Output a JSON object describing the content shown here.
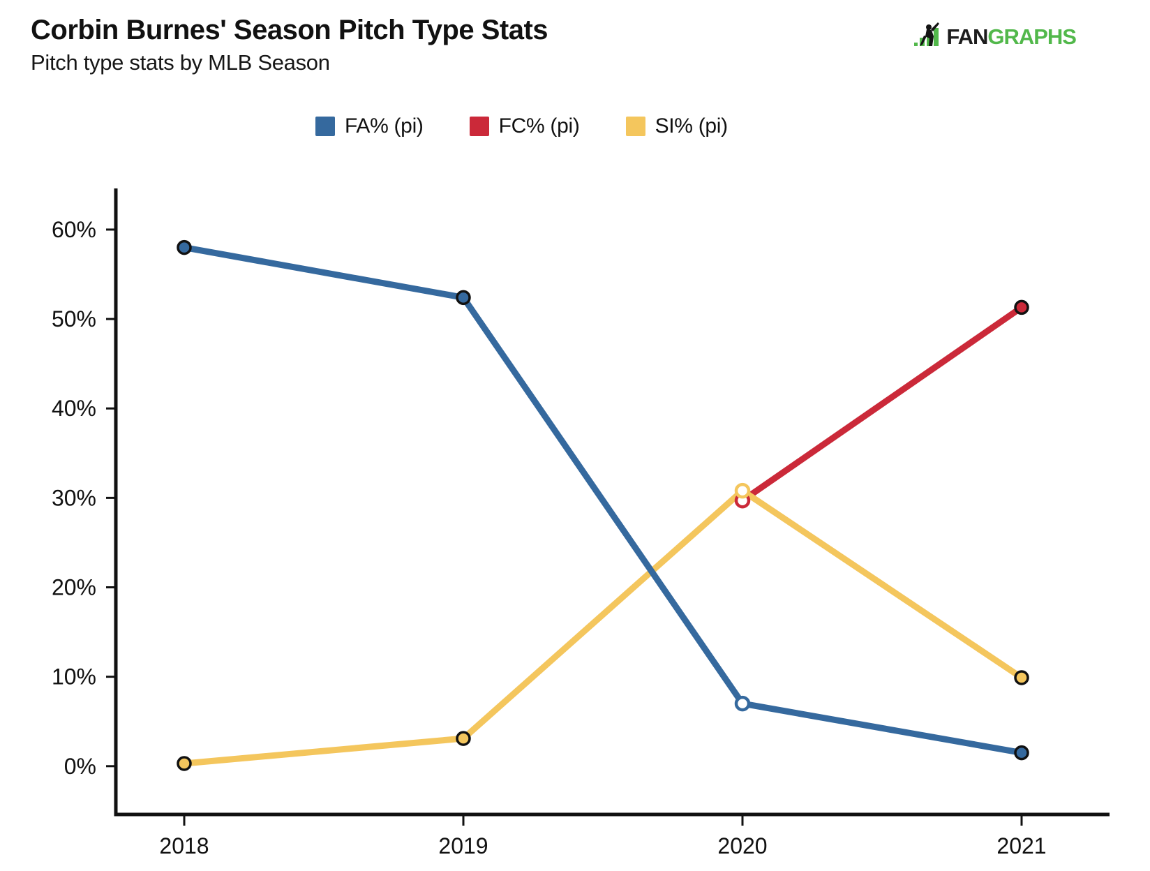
{
  "header": {
    "title": "Corbin Burnes' Season Pitch Type Stats",
    "subtitle": "Pitch type stats by MLB Season"
  },
  "logo": {
    "fan": "FAN",
    "graphs": "GRAPHS",
    "green": "#52B84B",
    "dark": "#1d1d1d"
  },
  "chart_data": {
    "type": "line",
    "title": "Corbin Burnes' Season Pitch Type Stats",
    "subtitle": "Pitch type stats by MLB Season",
    "categories": [
      "2018",
      "2019",
      "2020",
      "2021"
    ],
    "series": [
      {
        "name": "FA% (pi)",
        "color": "#35699E",
        "values": [
          58.0,
          52.4,
          7.0,
          1.5
        ],
        "hollow_point_indices": [
          2
        ]
      },
      {
        "name": "FC% (pi)",
        "color": "#CB2939",
        "values": [
          null,
          null,
          29.7,
          51.3
        ],
        "hollow_point_indices": [
          2
        ]
      },
      {
        "name": "SI% (pi)",
        "color": "#F4C65D",
        "values": [
          0.3,
          3.1,
          30.8,
          9.9
        ],
        "hollow_point_indices": [
          2
        ]
      }
    ],
    "yticks": [
      {
        "label": "0%",
        "value": 0
      },
      {
        "label": "10%",
        "value": 10
      },
      {
        "label": "20%",
        "value": 20
      },
      {
        "label": "30%",
        "value": 30
      },
      {
        "label": "40%",
        "value": 40
      },
      {
        "label": "50%",
        "value": 50
      },
      {
        "label": "60%",
        "value": 60
      }
    ],
    "ylim": [
      -5.4,
      64.6
    ],
    "grid": false,
    "legend_position": "top",
    "axis_color": "#111111",
    "tick_label_color": "#111111"
  }
}
